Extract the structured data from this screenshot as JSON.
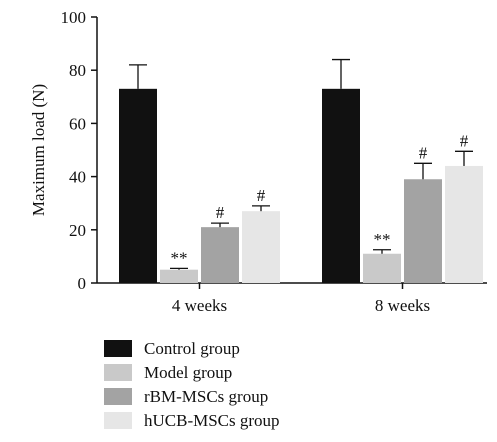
{
  "chart_data": {
    "type": "bar",
    "ylabel": "Maximum load (N)",
    "xlabel": "",
    "ylim": [
      0,
      100
    ],
    "yticks": [
      0,
      20,
      40,
      60,
      80,
      100
    ],
    "categories": [
      "4 weeks",
      "8 weeks"
    ],
    "series": [
      {
        "name": "Control group",
        "values": [
          73,
          73
        ],
        "errors": [
          9,
          11
        ],
        "annotations": [
          "",
          ""
        ],
        "color": "#111111"
      },
      {
        "name": "Model group",
        "values": [
          5,
          11
        ],
        "errors": [
          0.5,
          1.5
        ],
        "annotations": [
          "**",
          "**"
        ],
        "color": "#c9c9c9"
      },
      {
        "name": "rBM-MSCs group",
        "values": [
          21,
          39
        ],
        "errors": [
          1.5,
          6
        ],
        "annotations": [
          "#",
          "#"
        ],
        "color": "#a3a3a3"
      },
      {
        "name": "hUCB-MSCs group",
        "values": [
          27,
          44
        ],
        "errors": [
          2,
          5.5
        ],
        "annotations": [
          "#",
          "#"
        ],
        "color": "#e6e6e6"
      }
    ],
    "legend_position": "bottom-left"
  }
}
